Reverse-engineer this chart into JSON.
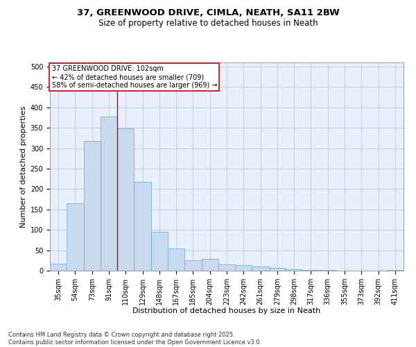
{
  "title_line1": "37, GREENWOOD DRIVE, CIMLA, NEATH, SA11 2BW",
  "title_line2": "Size of property relative to detached houses in Neath",
  "xlabel": "Distribution of detached houses by size in Neath",
  "ylabel": "Number of detached properties",
  "bar_color": "#c8d9f0",
  "bar_edge_color": "#7aaed6",
  "background_color": "#e8f0fb",
  "grid_color": "#b8c8e0",
  "categories": [
    "35sqm",
    "54sqm",
    "73sqm",
    "91sqm",
    "110sqm",
    "129sqm",
    "148sqm",
    "167sqm",
    "185sqm",
    "204sqm",
    "223sqm",
    "242sqm",
    "261sqm",
    "279sqm",
    "298sqm",
    "317sqm",
    "336sqm",
    "355sqm",
    "373sqm",
    "392sqm",
    "411sqm"
  ],
  "values": [
    17,
    165,
    318,
    378,
    348,
    217,
    96,
    54,
    25,
    29,
    15,
    13,
    10,
    7,
    4,
    2,
    1,
    0,
    0,
    0,
    1
  ],
  "ylim": [
    0,
    510
  ],
  "yticks": [
    0,
    50,
    100,
    150,
    200,
    250,
    300,
    350,
    400,
    450,
    500
  ],
  "property_line_x": 3.5,
  "annotation_text": "37 GREENWOOD DRIVE: 102sqm\n← 42% of detached houses are smaller (709)\n58% of semi-detached houses are larger (969) →",
  "annotation_box_color": "#ffffff",
  "annotation_border_color": "#cc0000",
  "footer_line1": "Contains HM Land Registry data © Crown copyright and database right 2025.",
  "footer_line2": "Contains public sector information licensed under the Open Government Licence v3.0.",
  "title_fontsize": 9.5,
  "subtitle_fontsize": 8.5,
  "tick_fontsize": 7,
  "label_fontsize": 8,
  "annotation_fontsize": 7,
  "footer_fontsize": 6
}
